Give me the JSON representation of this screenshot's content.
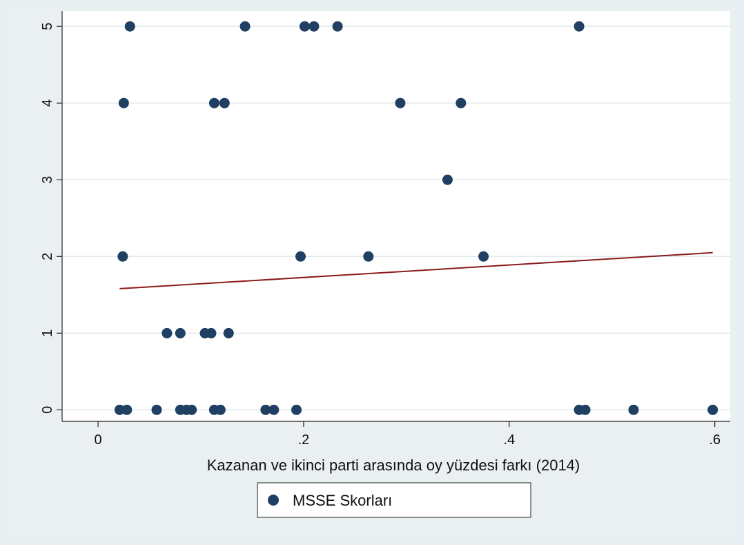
{
  "chart_data": {
    "type": "scatter",
    "xlabel": "Kazanan ve ikinci parti arasında oy yüzdesi farkı (2014)",
    "ylabel": "",
    "xlim": [
      -0.035,
      0.615
    ],
    "ylim": [
      -0.15,
      5.2
    ],
    "xticks": [
      {
        "value": 0,
        "label": "0"
      },
      {
        "value": 0.2,
        "label": ".2"
      },
      {
        "value": 0.4,
        "label": ".4"
      },
      {
        "value": 0.6,
        "label": ".6"
      }
    ],
    "yticks": [
      {
        "value": 0,
        "label": "0"
      },
      {
        "value": 1,
        "label": "1"
      },
      {
        "value": 2,
        "label": "2"
      },
      {
        "value": 3,
        "label": "3"
      },
      {
        "value": 4,
        "label": "4"
      },
      {
        "value": 5,
        "label": "5"
      }
    ],
    "grid": true,
    "legend_position": "bottom-center",
    "series": [
      {
        "name": "MSSE Skorları",
        "kind": "points",
        "color": "#1f3f63",
        "points": [
          {
            "x": 0.031,
            "y": 5
          },
          {
            "x": 0.143,
            "y": 5
          },
          {
            "x": 0.201,
            "y": 5
          },
          {
            "x": 0.21,
            "y": 5
          },
          {
            "x": 0.233,
            "y": 5
          },
          {
            "x": 0.468,
            "y": 5
          },
          {
            "x": 0.025,
            "y": 4
          },
          {
            "x": 0.113,
            "y": 4
          },
          {
            "x": 0.123,
            "y": 4
          },
          {
            "x": 0.294,
            "y": 4
          },
          {
            "x": 0.353,
            "y": 4
          },
          {
            "x": 0.34,
            "y": 3
          },
          {
            "x": 0.024,
            "y": 2
          },
          {
            "x": 0.197,
            "y": 2
          },
          {
            "x": 0.263,
            "y": 2
          },
          {
            "x": 0.375,
            "y": 2
          },
          {
            "x": 0.067,
            "y": 1
          },
          {
            "x": 0.08,
            "y": 1
          },
          {
            "x": 0.104,
            "y": 1
          },
          {
            "x": 0.11,
            "y": 1
          },
          {
            "x": 0.127,
            "y": 1
          },
          {
            "x": 0.021,
            "y": 0
          },
          {
            "x": 0.028,
            "y": 0
          },
          {
            "x": 0.057,
            "y": 0
          },
          {
            "x": 0.08,
            "y": 0
          },
          {
            "x": 0.086,
            "y": 0
          },
          {
            "x": 0.091,
            "y": 0
          },
          {
            "x": 0.113,
            "y": 0
          },
          {
            "x": 0.119,
            "y": 0
          },
          {
            "x": 0.163,
            "y": 0
          },
          {
            "x": 0.171,
            "y": 0
          },
          {
            "x": 0.193,
            "y": 0
          },
          {
            "x": 0.468,
            "y": 0
          },
          {
            "x": 0.474,
            "y": 0
          },
          {
            "x": 0.521,
            "y": 0
          },
          {
            "x": 0.598,
            "y": 0
          }
        ]
      },
      {
        "name": "",
        "kind": "line",
        "color": "#8b1a1a",
        "points": [
          {
            "x": 0.021,
            "y": 1.58
          },
          {
            "x": 0.598,
            "y": 2.05
          }
        ]
      }
    ]
  }
}
